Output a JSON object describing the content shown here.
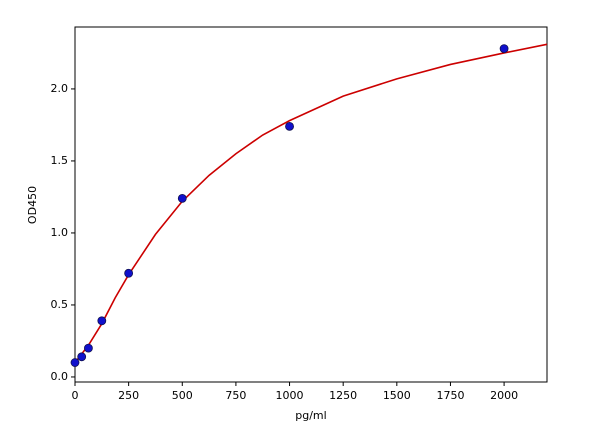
{
  "chart_data": {
    "type": "scatter",
    "x_label": "pg/ml",
    "y_label": "OD450",
    "xlim": [
      0,
      2200
    ],
    "ylim": [
      -0.035,
      2.43
    ],
    "xticks": [
      0,
      250,
      500,
      750,
      1000,
      1250,
      1500,
      1750,
      2000
    ],
    "yticks": [
      {
        "value": 0,
        "label": "0.0"
      },
      0.5,
      {
        "value": 1,
        "label": "1.0"
      },
      1.5,
      {
        "value": 2,
        "label": "2.0"
      }
    ],
    "series": [
      {
        "kind": "line",
        "color": "#cc0000",
        "x": [
          0,
          62.5,
          125,
          187.5,
          250,
          375,
          500,
          625,
          750,
          875,
          1000,
          1250,
          1500,
          1750,
          2000,
          2200
        ],
        "values": [
          0.1,
          0.22,
          0.37,
          0.55,
          0.71,
          0.99,
          1.22,
          1.4,
          1.55,
          1.68,
          1.78,
          1.95,
          2.07,
          2.17,
          2.25,
          2.31
        ]
      },
      {
        "kind": "points",
        "color": "#1010cc",
        "x": [
          0,
          31.25,
          62.5,
          125,
          250,
          500,
          1000,
          2000
        ],
        "values": [
          0.1,
          0.14,
          0.2,
          0.39,
          0.72,
          1.24,
          1.74,
          2.28
        ]
      }
    ]
  }
}
